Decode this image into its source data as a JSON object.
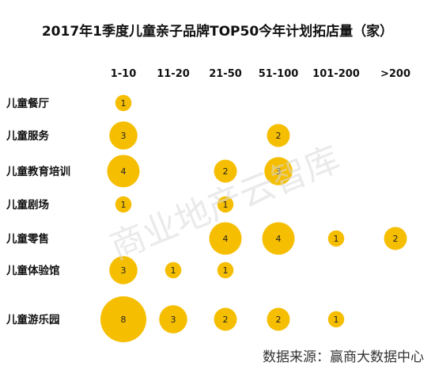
{
  "chart_data": {
    "type": "bubble-matrix",
    "title": "2017年1季度儿童亲子品牌TOP50今年计划拓店量（家）",
    "columns": [
      "1-10",
      "11-20",
      "21-50",
      "51-100",
      "101-200",
      ">200"
    ],
    "rows": [
      "儿童餐厅",
      "儿童服务",
      "儿童教育培训",
      "儿童剧场",
      "儿童零售",
      "儿童体验馆",
      "儿童游乐园"
    ],
    "values": [
      [
        1,
        null,
        null,
        null,
        null,
        null
      ],
      [
        3,
        null,
        null,
        2,
        null,
        null
      ],
      [
        4,
        null,
        2,
        3,
        null,
        null
      ],
      [
        1,
        null,
        1,
        null,
        null,
        null
      ],
      [
        null,
        null,
        4,
        4,
        1,
        2
      ],
      [
        3,
        1,
        1,
        null,
        null,
        null
      ],
      [
        8,
        3,
        2,
        2,
        1,
        null
      ]
    ],
    "bubble_color": "#F6BE00"
  },
  "watermark": "商业地产云智库",
  "source": "数据来源：赢商大数据中心"
}
